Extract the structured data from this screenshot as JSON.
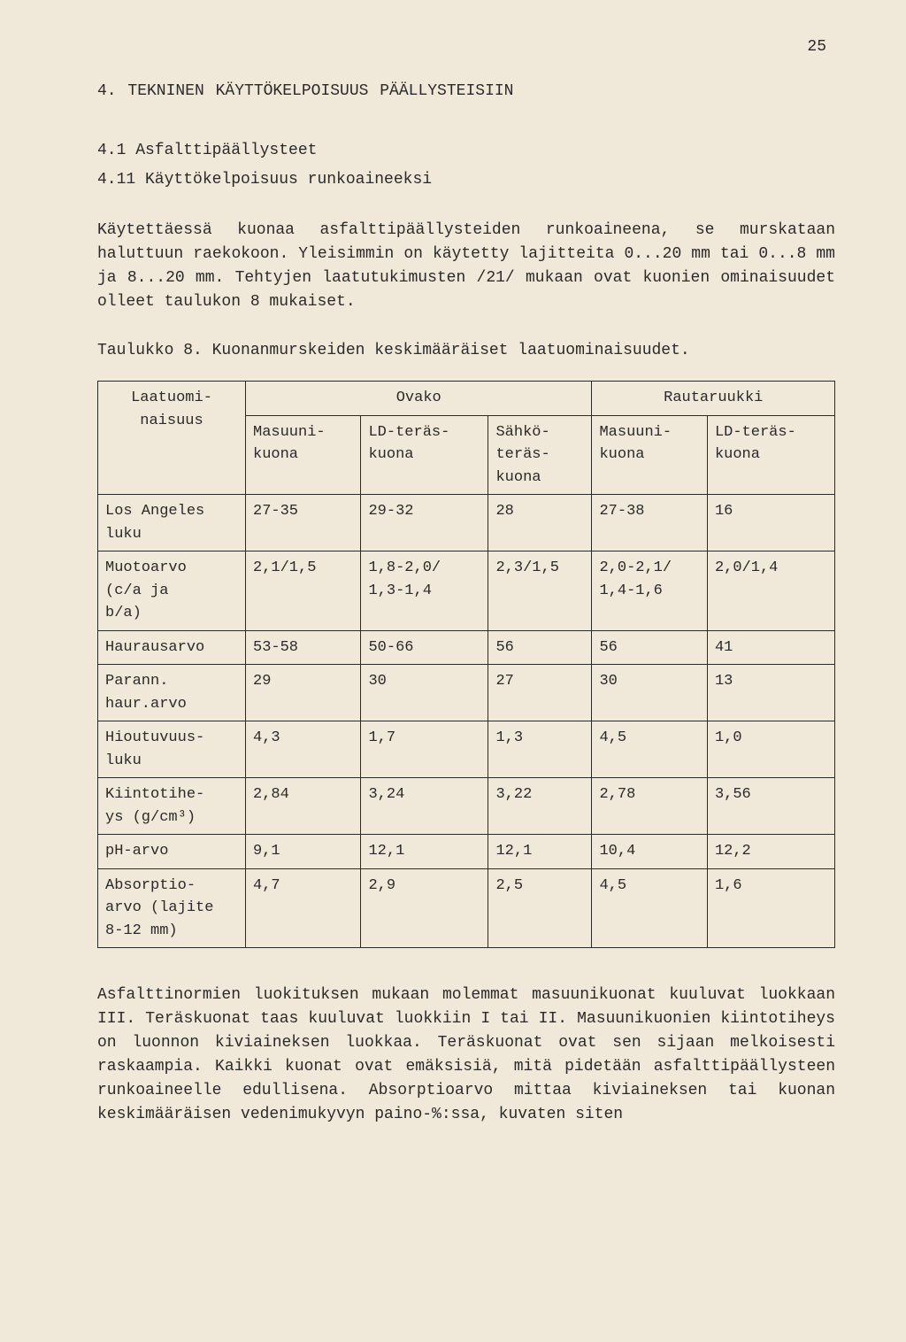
{
  "page_number": "25",
  "heading_main": "4.  TEKNINEN KÄYTTÖKELPOISUUS PÄÄLLYSTEISIIN",
  "heading_sub": "4.1  Asfalttipäällysteet",
  "heading_subsub": "4.11 Käyttökelpoisuus runkoaineeksi",
  "para1": "Käytettäessä kuonaa asfalttipäällysteiden runkoaineena, se murskataan haluttuun raekokoon. Yleisimmin on käytetty lajitteita 0...20 mm tai 0...8 mm ja 8...20 mm. Tehtyjen laatutukimusten /21/ mukaan ovat kuonien ominaisuudet olleet taulukon 8 mukaiset.",
  "table_caption": "Taulukko 8.  Kuonanmurskeiden keskimääräiset laatuominaisuudet.",
  "table": {
    "group_headers": [
      "Ovako",
      "Rautaruukki"
    ],
    "row_header_label": "Laatuomi-\nnaisuus",
    "col_headers": [
      "Masuuni-\nkuona",
      "LD-teräs-\nkuona",
      "Sähkö-\nteräs-\nkuona",
      "Masuuni-\nkuona",
      "LD-teräs-\nkuona"
    ],
    "rows": [
      {
        "label": "Los Angeles\nluku",
        "v": [
          "27-35",
          "29-32",
          "28",
          "27-38",
          "16"
        ]
      },
      {
        "label": "Muotoarvo\n(c/a ja\nb/a)",
        "v": [
          "2,1/1,5",
          "1,8-2,0/\n1,3-1,4",
          "2,3/1,5",
          "2,0-2,1/\n1,4-1,6",
          "2,0/1,4"
        ]
      },
      {
        "label": "Haurausarvo",
        "v": [
          "53-58",
          "50-66",
          "56",
          "56",
          "41"
        ]
      },
      {
        "label": "Parann.\nhaur.arvo",
        "v": [
          "29",
          "30",
          "27",
          "30",
          "13"
        ]
      },
      {
        "label": "Hioutuvuus-\nluku",
        "v": [
          "4,3",
          "1,7",
          "1,3",
          "4,5",
          "1,0"
        ]
      },
      {
        "label": "Kiintotihe-\nys (g/cm³)",
        "v": [
          "2,84",
          "3,24",
          "3,22",
          "2,78",
          "3,56"
        ]
      },
      {
        "label": "pH-arvo",
        "v": [
          "9,1",
          "12,1",
          "12,1",
          "10,4",
          "12,2"
        ]
      },
      {
        "label": "Absorptio-\narvo (lajite\n8-12 mm)",
        "v": [
          "4,7",
          "2,9",
          "2,5",
          "4,5",
          "1,6"
        ]
      }
    ]
  },
  "para_bottom": "Asfalttinormien luokituksen mukaan molemmat masuunikuonat kuuluvat luokkaan III. Teräskuonat taas kuuluvat luokkiin I tai II. Masuunikuonien kiintotiheys on luonnon kiviaineksen luokkaa. Teräskuonat ovat sen sijaan melkoisesti raskaampia. Kaikki kuonat ovat emäksisiä, mitä pidetään asfalttipäällysteen runkoaineelle edullisena. Absorptioarvo mittaa kiviaineksen tai kuonan keskimääräisen vedenimukyvyn paino-%:ssa, kuvaten siten"
}
